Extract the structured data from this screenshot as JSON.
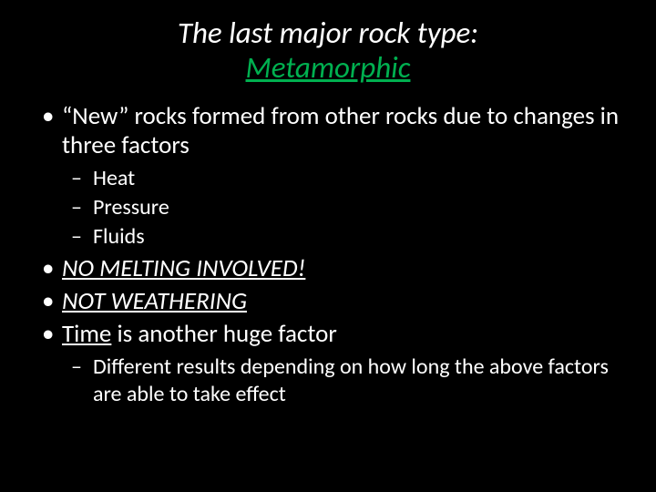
{
  "colors": {
    "background": "#000000",
    "text": "#ffffff",
    "accent": "#00b050"
  },
  "title": {
    "line1": "The last major rock type:",
    "line2": "Metamorphic"
  },
  "bullets": {
    "b1": {
      "text_a": "“New” rocks formed from other rocks due to changes in three factors",
      "sub": {
        "s1": "Heat",
        "s2": "Pressure",
        "s3": "Fluids"
      }
    },
    "b2": "NO MELTING INVOLVED!",
    "b3": "NOT WEATHERING",
    "b4": {
      "part1": "Time",
      "part2": " is another huge factor",
      "sub": {
        "s1": "Different results depending on how long the above factors are able to take effect"
      }
    }
  }
}
